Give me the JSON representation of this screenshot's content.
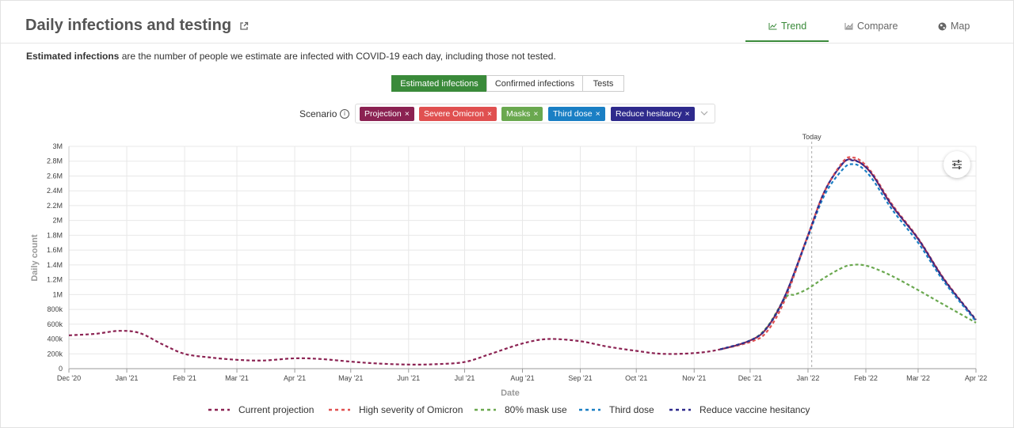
{
  "header": {
    "title": "Daily infections and testing",
    "tabs": [
      {
        "label": "Trend",
        "icon": "line-chart-icon",
        "active": true
      },
      {
        "label": "Compare",
        "icon": "area-chart-icon",
        "active": false
      },
      {
        "label": "Map",
        "icon": "globe-icon",
        "active": false
      }
    ]
  },
  "description": {
    "bold": "Estimated infections",
    "rest": " are the number of people we estimate are infected with COVID-19 each day, including those not tested."
  },
  "toggles": [
    {
      "label": "Estimated infections",
      "active": true
    },
    {
      "label": "Confirmed infections",
      "active": false
    },
    {
      "label": "Tests",
      "active": false
    }
  ],
  "scenario": {
    "label": "Scenario",
    "chips": [
      {
        "label": "Projection",
        "color": "#8b2252"
      },
      {
        "label": "Severe Omicron",
        "color": "#e05050"
      },
      {
        "label": "Masks",
        "color": "#6aa84f"
      },
      {
        "label": "Third dose",
        "color": "#1a7fc4"
      },
      {
        "label": "Reduce hesitancy",
        "color": "#2e2a8c"
      }
    ]
  },
  "chart_data": {
    "type": "line",
    "title": "",
    "xlabel": "Date",
    "ylabel": "Daily count",
    "ylim": [
      0,
      3000000
    ],
    "xlim": [
      "2020-12-01",
      "2022-04-01"
    ],
    "annotation": "Today",
    "annotation_date": "2022-01-03",
    "grid": true,
    "legend_position": "bottom",
    "x_tick_labels": [
      "Dec '20",
      "Jan '21",
      "Feb '21",
      "Mar '21",
      "Apr '21",
      "May '21",
      "Jun '21",
      "Jul '21",
      "Aug '21",
      "Sep '21",
      "Oct '21",
      "Nov '21",
      "Dec '21",
      "Jan '22",
      "Feb '22",
      "Mar '22",
      "Apr '22"
    ],
    "x_tick_dates": [
      "2020-12-01",
      "2021-01-01",
      "2021-02-01",
      "2021-03-01",
      "2021-04-01",
      "2021-05-01",
      "2021-06-01",
      "2021-07-01",
      "2021-08-01",
      "2021-09-01",
      "2021-10-01",
      "2021-11-01",
      "2021-12-01",
      "2022-01-01",
      "2022-02-01",
      "2022-03-01",
      "2022-04-01"
    ],
    "y_tick_labels": [
      "0",
      "200k",
      "400k",
      "600k",
      "800k",
      "1M",
      "1.2M",
      "1.4M",
      "1.6M",
      "1.8M",
      "2M",
      "2.2M",
      "2.4M",
      "2.6M",
      "2.8M",
      "3M"
    ],
    "y_tick_values": [
      0,
      200000,
      400000,
      600000,
      800000,
      1000000,
      1200000,
      1400000,
      1600000,
      1800000,
      2000000,
      2200000,
      2400000,
      2600000,
      2800000,
      3000000
    ],
    "series": [
      {
        "name": "Current projection",
        "color": "#8b2252",
        "x": [
          "2020-12-01",
          "2020-12-15",
          "2020-12-28",
          "2021-01-08",
          "2021-01-20",
          "2021-02-01",
          "2021-02-15",
          "2021-03-01",
          "2021-03-15",
          "2021-04-01",
          "2021-04-15",
          "2021-05-01",
          "2021-05-15",
          "2021-06-01",
          "2021-06-15",
          "2021-07-01",
          "2021-07-15",
          "2021-08-01",
          "2021-08-15",
          "2021-09-01",
          "2021-09-15",
          "2021-10-01",
          "2021-10-15",
          "2021-11-01",
          "2021-11-15",
          "2021-12-01",
          "2021-12-10",
          "2021-12-20",
          "2022-01-01",
          "2022-01-10",
          "2022-01-20",
          "2022-01-25",
          "2022-01-30",
          "2022-02-05",
          "2022-02-15",
          "2022-03-01",
          "2022-03-15",
          "2022-04-01"
        ],
        "y": [
          450000,
          470000,
          510000,
          480000,
          330000,
          200000,
          150000,
          120000,
          110000,
          140000,
          130000,
          95000,
          70000,
          55000,
          60000,
          90000,
          200000,
          340000,
          400000,
          370000,
          300000,
          240000,
          200000,
          210000,
          260000,
          380000,
          550000,
          1000000,
          1800000,
          2400000,
          2780000,
          2820000,
          2760000,
          2600000,
          2200000,
          1750000,
          1200000,
          650000
        ]
      },
      {
        "name": "High severity of Omicron",
        "color": "#e05050",
        "x": [
          "2021-11-15",
          "2021-12-01",
          "2021-12-10",
          "2021-12-20",
          "2022-01-01",
          "2022-01-10",
          "2022-01-20",
          "2022-01-25",
          "2022-01-30",
          "2022-02-05",
          "2022-02-15",
          "2022-03-01",
          "2022-03-15",
          "2022-04-01"
        ],
        "y": [
          260000,
          360000,
          500000,
          950000,
          1800000,
          2400000,
          2800000,
          2850000,
          2790000,
          2620000,
          2220000,
          1760000,
          1210000,
          660000
        ]
      },
      {
        "name": "80% mask use",
        "color": "#6aa84f",
        "x": [
          "2021-11-15",
          "2021-12-01",
          "2021-12-10",
          "2021-12-20",
          "2021-12-25",
          "2022-01-01",
          "2022-01-10",
          "2022-01-20",
          "2022-01-25",
          "2022-01-30",
          "2022-02-05",
          "2022-02-15",
          "2022-03-01",
          "2022-03-15",
          "2022-04-01"
        ],
        "y": [
          260000,
          380000,
          560000,
          960000,
          1000000,
          1080000,
          1230000,
          1370000,
          1400000,
          1400000,
          1360000,
          1250000,
          1060000,
          860000,
          620000
        ]
      },
      {
        "name": "Third dose",
        "color": "#1a7fc4",
        "x": [
          "2021-11-15",
          "2021-12-01",
          "2021-12-10",
          "2021-12-20",
          "2022-01-01",
          "2022-01-10",
          "2022-01-20",
          "2022-01-25",
          "2022-01-30",
          "2022-02-05",
          "2022-02-15",
          "2022-03-01",
          "2022-03-15",
          "2022-04-01"
        ],
        "y": [
          260000,
          380000,
          550000,
          990000,
          1780000,
          2350000,
          2700000,
          2760000,
          2710000,
          2540000,
          2150000,
          1700000,
          1170000,
          640000
        ]
      },
      {
        "name": "Reduce vaccine hesitancy",
        "color": "#2e2a8c",
        "x": [
          "2021-11-15",
          "2021-12-01",
          "2021-12-10",
          "2021-12-20",
          "2022-01-01",
          "2022-01-10",
          "2022-01-20",
          "2022-01-25",
          "2022-01-30",
          "2022-02-05",
          "2022-02-15",
          "2022-03-01",
          "2022-03-15",
          "2022-04-01"
        ],
        "y": [
          260000,
          380000,
          550000,
          1000000,
          1800000,
          2400000,
          2780000,
          2810000,
          2760000,
          2600000,
          2200000,
          1750000,
          1200000,
          660000
        ]
      }
    ]
  }
}
